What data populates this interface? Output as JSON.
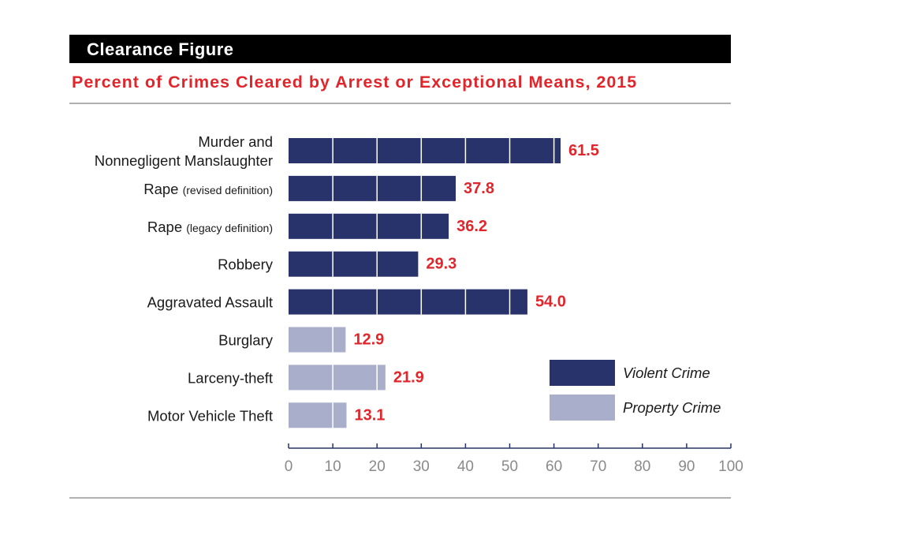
{
  "header": {
    "title": "Clearance Figure"
  },
  "chart_data": {
    "type": "bar",
    "orientation": "horizontal",
    "title": "Percent of Crimes Cleared by Arrest or Exceptional Means, 2015",
    "categories": [
      {
        "lines": [
          {
            "main": "Murder and"
          },
          {
            "main": "Nonnegligent Manslaughter"
          }
        ],
        "value": 61.5,
        "label": "61.5",
        "group": "violent"
      },
      {
        "lines": [
          {
            "main": "Rape ",
            "small": "(revised definition)"
          }
        ],
        "value": 37.8,
        "label": "37.8",
        "group": "violent"
      },
      {
        "lines": [
          {
            "main": "Rape ",
            "small": "(legacy definition)"
          }
        ],
        "value": 36.2,
        "label": "36.2",
        "group": "violent"
      },
      {
        "lines": [
          {
            "main": "Robbery"
          }
        ],
        "value": 29.3,
        "label": "29.3",
        "group": "violent"
      },
      {
        "lines": [
          {
            "main": "Aggravated Assault"
          }
        ],
        "value": 54.0,
        "label": "54.0",
        "group": "violent"
      },
      {
        "lines": [
          {
            "main": "Burglary"
          }
        ],
        "value": 12.9,
        "label": "12.9",
        "group": "property"
      },
      {
        "lines": [
          {
            "main": "Larceny-theft"
          }
        ],
        "value": 21.9,
        "label": "21.9",
        "group": "property"
      },
      {
        "lines": [
          {
            "main": "Motor Vehicle Theft"
          }
        ],
        "value": 13.1,
        "label": "13.1",
        "group": "property"
      }
    ],
    "xlim": [
      0,
      100
    ],
    "xticks": [
      "0",
      "10",
      "20",
      "30",
      "40",
      "50",
      "60",
      "70",
      "80",
      "90",
      "100"
    ],
    "gridlines_inside_bars": true,
    "legend": {
      "placement": "lower-right",
      "items": [
        {
          "key": "violent",
          "label": "Violent Crime"
        },
        {
          "key": "property",
          "label": "Property Crime"
        }
      ]
    },
    "colors": {
      "violent": "#27336a",
      "property": "#a9aecb",
      "value_label": "#e0262b",
      "axis": "#27336a",
      "tick_label": "#8a8a8a"
    }
  }
}
